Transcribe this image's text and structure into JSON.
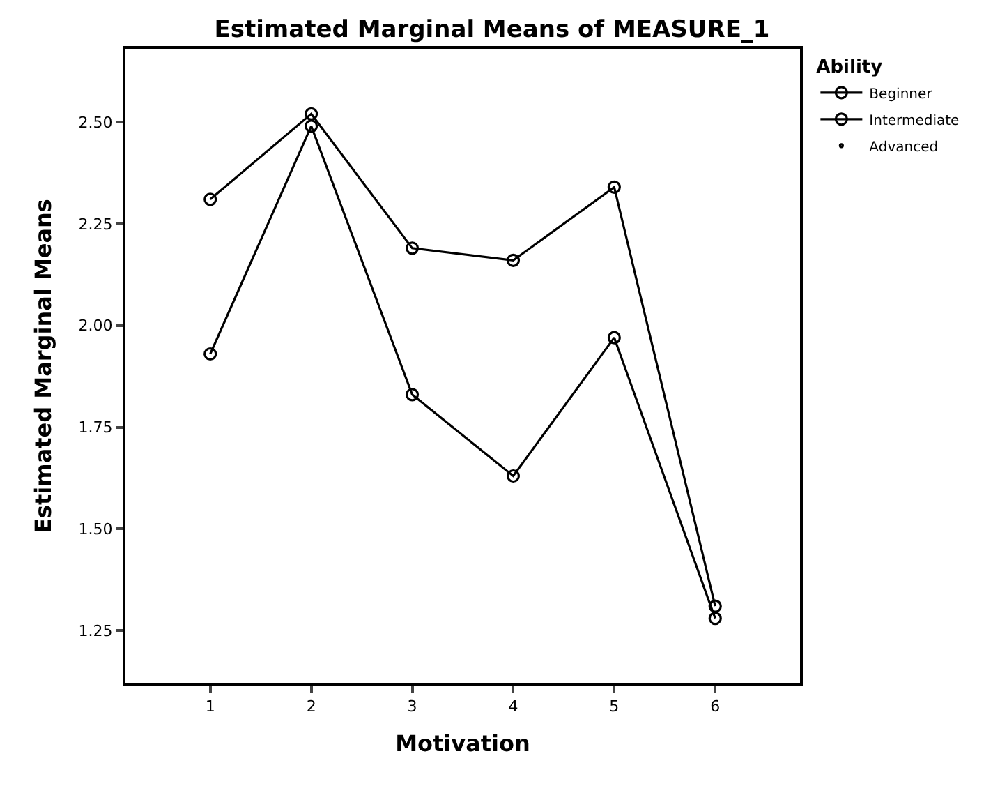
{
  "chart_data": {
    "type": "line",
    "title": "Estimated Marginal Means of MEASURE_1",
    "xlabel": "Motivation",
    "ylabel": "Estimated Marginal Means",
    "legend_title": "Ability",
    "x": [
      1,
      2,
      3,
      4,
      5,
      6
    ],
    "series": [
      {
        "name": "Beginner",
        "color": "#000000",
        "values": [
          2.31,
          2.52,
          2.19,
          2.16,
          2.34,
          1.31
        ]
      },
      {
        "name": "Intermediate",
        "color": "#000000",
        "values": [
          1.93,
          2.49,
          1.83,
          1.63,
          1.97,
          1.28
        ]
      },
      {
        "name": "Advanced",
        "color": "#000000",
        "values": [
          null,
          null,
          null,
          null,
          null,
          null
        ]
      }
    ],
    "xlim": [
      0.16,
      6.84
    ],
    "xticks": [
      1,
      2,
      3,
      4,
      5,
      6
    ],
    "ylim": [
      1.12,
      2.68
    ],
    "yticks": [
      {
        "value": 1.25,
        "label": "1.25"
      },
      {
        "value": 1.5,
        "label": "1.50"
      },
      {
        "value": 1.75,
        "label": "1.75"
      },
      {
        "value": 2.0,
        "label": "2.00"
      },
      {
        "value": 2.25,
        "label": "2.25"
      },
      {
        "value": 2.5,
        "label": "2.50"
      }
    ],
    "legend": "top right",
    "marker": "circle",
    "line_style": "solid"
  }
}
